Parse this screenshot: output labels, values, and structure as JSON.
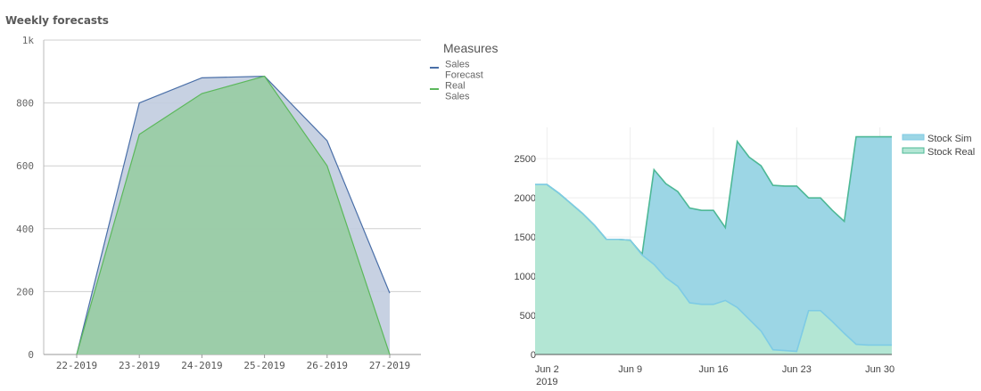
{
  "page": {
    "title": "Weekly forecasts"
  },
  "chart_data": [
    {
      "type": "area",
      "title": "",
      "legend_title": "Measures",
      "legend_position": "top-right",
      "categories": [
        "22-2019",
        "23-2019",
        "24-2019",
        "25-2019",
        "26-2019",
        "27-2019"
      ],
      "series": [
        {
          "name": "Sales Forecast",
          "name_lines": [
            "Sales",
            "Forecast"
          ],
          "color": "#4a6fa8",
          "fill": "#c2cde0",
          "values": [
            0,
            800,
            880,
            885,
            680,
            195
          ]
        },
        {
          "name": "Real Sales",
          "name_lines": [
            "Real",
            "Sales"
          ],
          "color": "#5cb85c",
          "fill": "#98cca4",
          "values": [
            0,
            700,
            830,
            885,
            600,
            0
          ]
        }
      ],
      "yticks": [
        {
          "value": 0,
          "label": "0"
        },
        {
          "value": 200,
          "label": "200"
        },
        {
          "value": 400,
          "label": "400"
        },
        {
          "value": 600,
          "label": "600"
        },
        {
          "value": 800,
          "label": "800"
        },
        {
          "value": 1000,
          "label": "1k"
        }
      ],
      "ylim": [
        0,
        1000
      ],
      "grid": true
    },
    {
      "type": "area",
      "title": "",
      "legend_position": "top-right",
      "x_start": "2019-06-01",
      "xticks": [
        {
          "x": "2019-06-02",
          "label": "Jun 2",
          "sublabel": "2019"
        },
        {
          "x": "2019-06-09",
          "label": "Jun 9"
        },
        {
          "x": "2019-06-16",
          "label": "Jun 16"
        },
        {
          "x": "2019-06-23",
          "label": "Jun 23"
        },
        {
          "x": "2019-06-30",
          "label": "Jun 30"
        }
      ],
      "xlim": [
        "2019-06-01",
        "2019-07-01"
      ],
      "yticks": [
        0,
        500,
        1000,
        1500,
        2000,
        2500
      ],
      "ylim": [
        0,
        2900
      ],
      "grid": true,
      "series": [
        {
          "name": "Stock Sim",
          "color": "#7ecbe5",
          "fill": "#9cd6e5",
          "x": [
            "2019-06-01",
            "2019-06-02",
            "2019-06-03",
            "2019-06-05",
            "2019-06-06",
            "2019-06-07",
            "2019-06-08",
            "2019-06-09",
            "2019-06-10",
            "2019-06-11",
            "2019-06-12",
            "2019-06-13",
            "2019-06-14",
            "2019-06-15",
            "2019-06-16",
            "2019-06-17",
            "2019-06-18",
            "2019-06-19",
            "2019-06-20",
            "2019-06-21",
            "2019-06-22",
            "2019-06-23",
            "2019-06-24",
            "2019-06-25",
            "2019-06-26",
            "2019-06-27",
            "2019-06-28",
            "2019-06-29",
            "2019-06-30",
            "2019-07-01"
          ],
          "values": [
            2170,
            2170,
            2060,
            1800,
            1650,
            1470,
            1470,
            1460,
            1270,
            1150,
            980,
            870,
            660,
            640,
            640,
            690,
            600,
            450,
            300,
            60,
            50,
            40,
            560,
            560,
            420,
            270,
            130,
            120,
            120,
            120
          ]
        },
        {
          "name": "Stock Real",
          "color": "#4db896",
          "fill": "#b3e6d4",
          "x": [
            "2019-06-01",
            "2019-06-02",
            "2019-06-03",
            "2019-06-05",
            "2019-06-06",
            "2019-06-07",
            "2019-06-08",
            "2019-06-09",
            "2019-06-10",
            "2019-06-11",
            "2019-06-12",
            "2019-06-13",
            "2019-06-14",
            "2019-06-15",
            "2019-06-16",
            "2019-06-17",
            "2019-06-18",
            "2019-06-19",
            "2019-06-20",
            "2019-06-21",
            "2019-06-22",
            "2019-06-23",
            "2019-06-24",
            "2019-06-25",
            "2019-06-26",
            "2019-06-27",
            "2019-06-28",
            "2019-06-29",
            "2019-06-30",
            "2019-07-01"
          ],
          "values": [
            2170,
            2170,
            2060,
            1800,
            1650,
            1470,
            1470,
            1460,
            1280,
            2360,
            2180,
            2080,
            1870,
            1840,
            1840,
            1620,
            2720,
            2520,
            2410,
            2160,
            2150,
            2150,
            2000,
            2000,
            1840,
            1700,
            2780,
            2780,
            2780,
            2780
          ]
        }
      ]
    }
  ]
}
